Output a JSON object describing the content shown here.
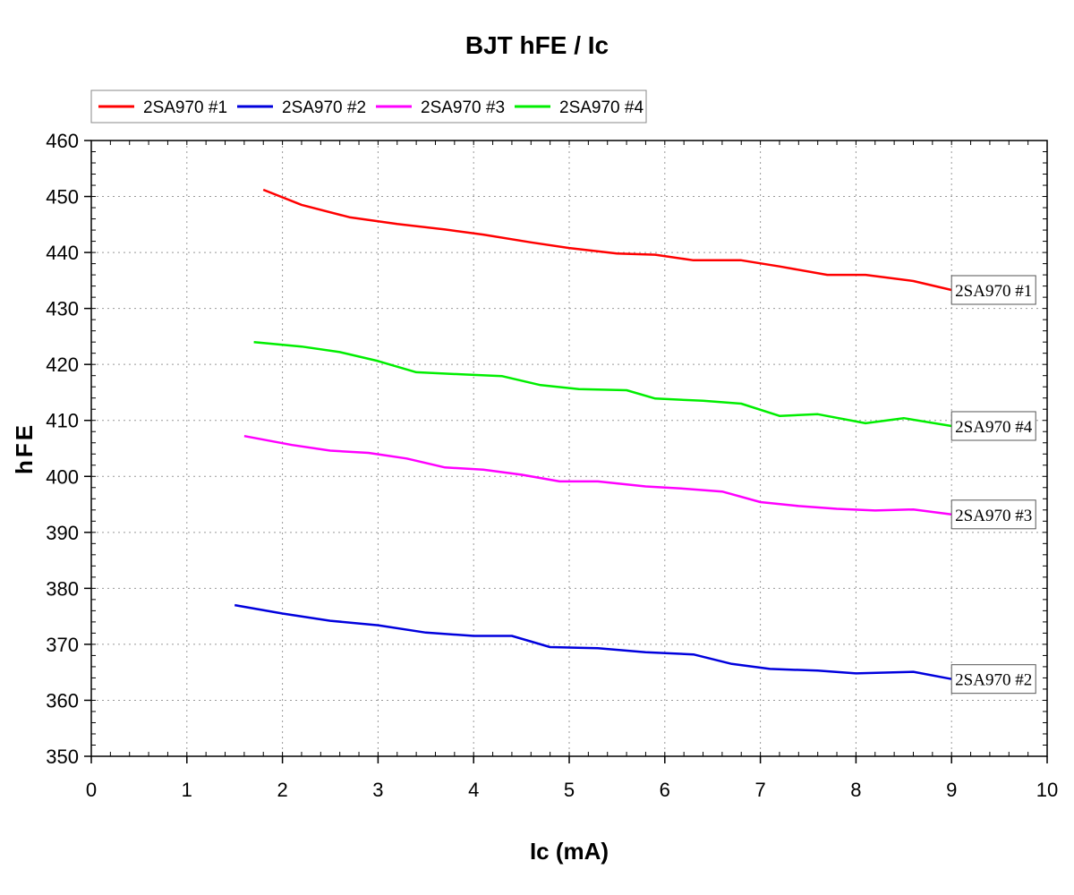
{
  "chart_data": {
    "type": "line",
    "title": "BJT hFE / Ic",
    "xlabel": "Ic (mA)",
    "ylabel": "hFE",
    "xlim": [
      0,
      10
    ],
    "ylim": [
      350,
      460
    ],
    "xticks": [
      "0",
      "1",
      "2",
      "3",
      "4",
      "5",
      "6",
      "7",
      "8",
      "9",
      "10"
    ],
    "yticks": [
      "350",
      "360",
      "370",
      "380",
      "390",
      "400",
      "410",
      "420",
      "430",
      "440",
      "450",
      "460"
    ],
    "grid": true,
    "legend_position": "top-left",
    "series": [
      {
        "name": "2SA970 #1",
        "color": "#ff0000",
        "end_label": "2SA970 #1",
        "x": [
          1.8,
          2.2,
          2.7,
          3.2,
          3.7,
          4.1,
          4.6,
          5.0,
          5.5,
          5.9,
          6.3,
          6.8,
          7.2,
          7.7,
          8.1,
          8.6,
          9.0
        ],
        "y": [
          451.2,
          448.5,
          446.3,
          445.1,
          444.1,
          443.2,
          441.8,
          440.8,
          439.8,
          439.6,
          438.6,
          438.6,
          437.5,
          436.0,
          436.0,
          434.9,
          433.3
        ]
      },
      {
        "name": "2SA970 #2",
        "color": "#0000dd",
        "end_label": "2SA970 #2",
        "x": [
          1.5,
          2.0,
          2.5,
          3.0,
          3.5,
          4.0,
          4.4,
          4.8,
          5.3,
          5.8,
          6.3,
          6.7,
          7.1,
          7.6,
          8.0,
          8.6,
          9.0
        ],
        "y": [
          377.0,
          375.5,
          374.2,
          373.4,
          372.1,
          371.5,
          371.5,
          369.5,
          369.3,
          368.6,
          368.2,
          366.5,
          365.6,
          365.3,
          364.8,
          365.1,
          363.8
        ]
      },
      {
        "name": "2SA970 #3",
        "color": "#ff00ff",
        "end_label": "2SA970 #3",
        "x": [
          1.6,
          2.1,
          2.5,
          2.9,
          3.3,
          3.7,
          4.1,
          4.5,
          4.9,
          5.3,
          5.8,
          6.2,
          6.6,
          7.0,
          7.4,
          7.8,
          8.2,
          8.6,
          9.0
        ],
        "y": [
          407.2,
          405.6,
          404.6,
          404.2,
          403.2,
          401.6,
          401.2,
          400.3,
          399.1,
          399.1,
          398.2,
          397.8,
          397.3,
          395.4,
          394.7,
          394.2,
          393.9,
          394.1,
          393.2
        ]
      },
      {
        "name": "2SA970 #4",
        "color": "#00ee00",
        "end_label": "2SA970 #4",
        "x": [
          1.7,
          2.2,
          2.6,
          3.0,
          3.4,
          3.9,
          4.3,
          4.7,
          5.1,
          5.6,
          5.9,
          6.4,
          6.8,
          7.2,
          7.6,
          8.1,
          8.5,
          9.0
        ],
        "y": [
          424.0,
          423.2,
          422.2,
          420.6,
          418.6,
          418.2,
          417.9,
          416.3,
          415.6,
          415.4,
          413.9,
          413.5,
          413.0,
          410.8,
          411.1,
          409.5,
          410.4,
          409.0
        ]
      }
    ]
  }
}
